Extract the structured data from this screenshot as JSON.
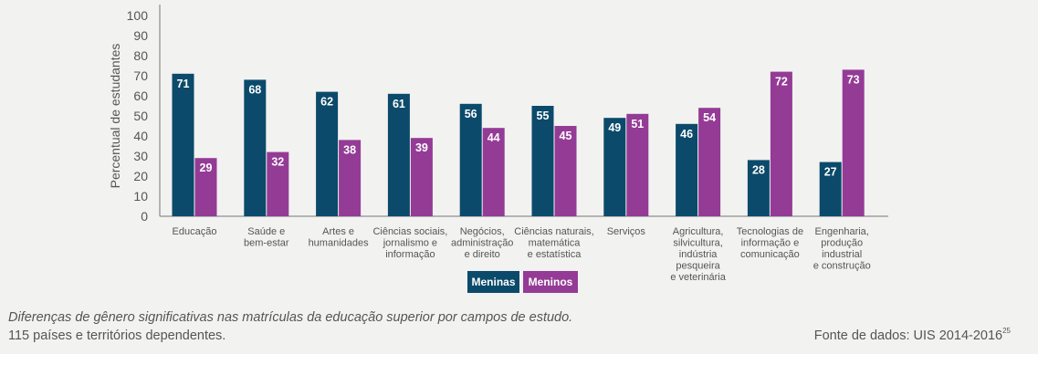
{
  "chart_data": {
    "type": "bar",
    "ylabel": "Percentual de estudantes",
    "ylim": [
      0,
      100
    ],
    "yticks": [
      0,
      10,
      20,
      30,
      40,
      50,
      60,
      70,
      80,
      90,
      100
    ],
    "categories": [
      [
        "Educação"
      ],
      [
        "Saúde e",
        "bem-estar"
      ],
      [
        "Artes e",
        "humanidades"
      ],
      [
        "Ciências sociais,",
        "jornalismo e",
        "informação"
      ],
      [
        "Negócios,",
        "administração",
        "e direito"
      ],
      [
        "Ciências naturais,",
        "matemática",
        "e estatística"
      ],
      [
        "Serviços"
      ],
      [
        "Agricultura,",
        "silvicultura,",
        "indústria",
        "pesqueira",
        "e veterinária"
      ],
      [
        "Tecnologias de",
        "informação e",
        "comunicação"
      ],
      [
        "Engenharia,",
        "produção",
        "industrial",
        "e construção"
      ]
    ],
    "series": [
      {
        "name": "Meninas",
        "color": "#0b4a6a",
        "values": [
          71,
          68,
          62,
          61,
          56,
          55,
          49,
          46,
          28,
          27
        ]
      },
      {
        "name": "Meninos",
        "color": "#943b96",
        "values": [
          29,
          32,
          38,
          39,
          44,
          45,
          51,
          54,
          72,
          73
        ]
      }
    ],
    "legend_position": "bottom-center",
    "grid": false,
    "data_labels": true
  },
  "caption": {
    "line1": "Diferenças de gênero significativas nas matrículas da educação superior por campos de estudo.",
    "line2": "115 países e territórios dependentes."
  },
  "source": {
    "text": "Fonte de dados: UIS 2014-2016",
    "note": "25"
  }
}
